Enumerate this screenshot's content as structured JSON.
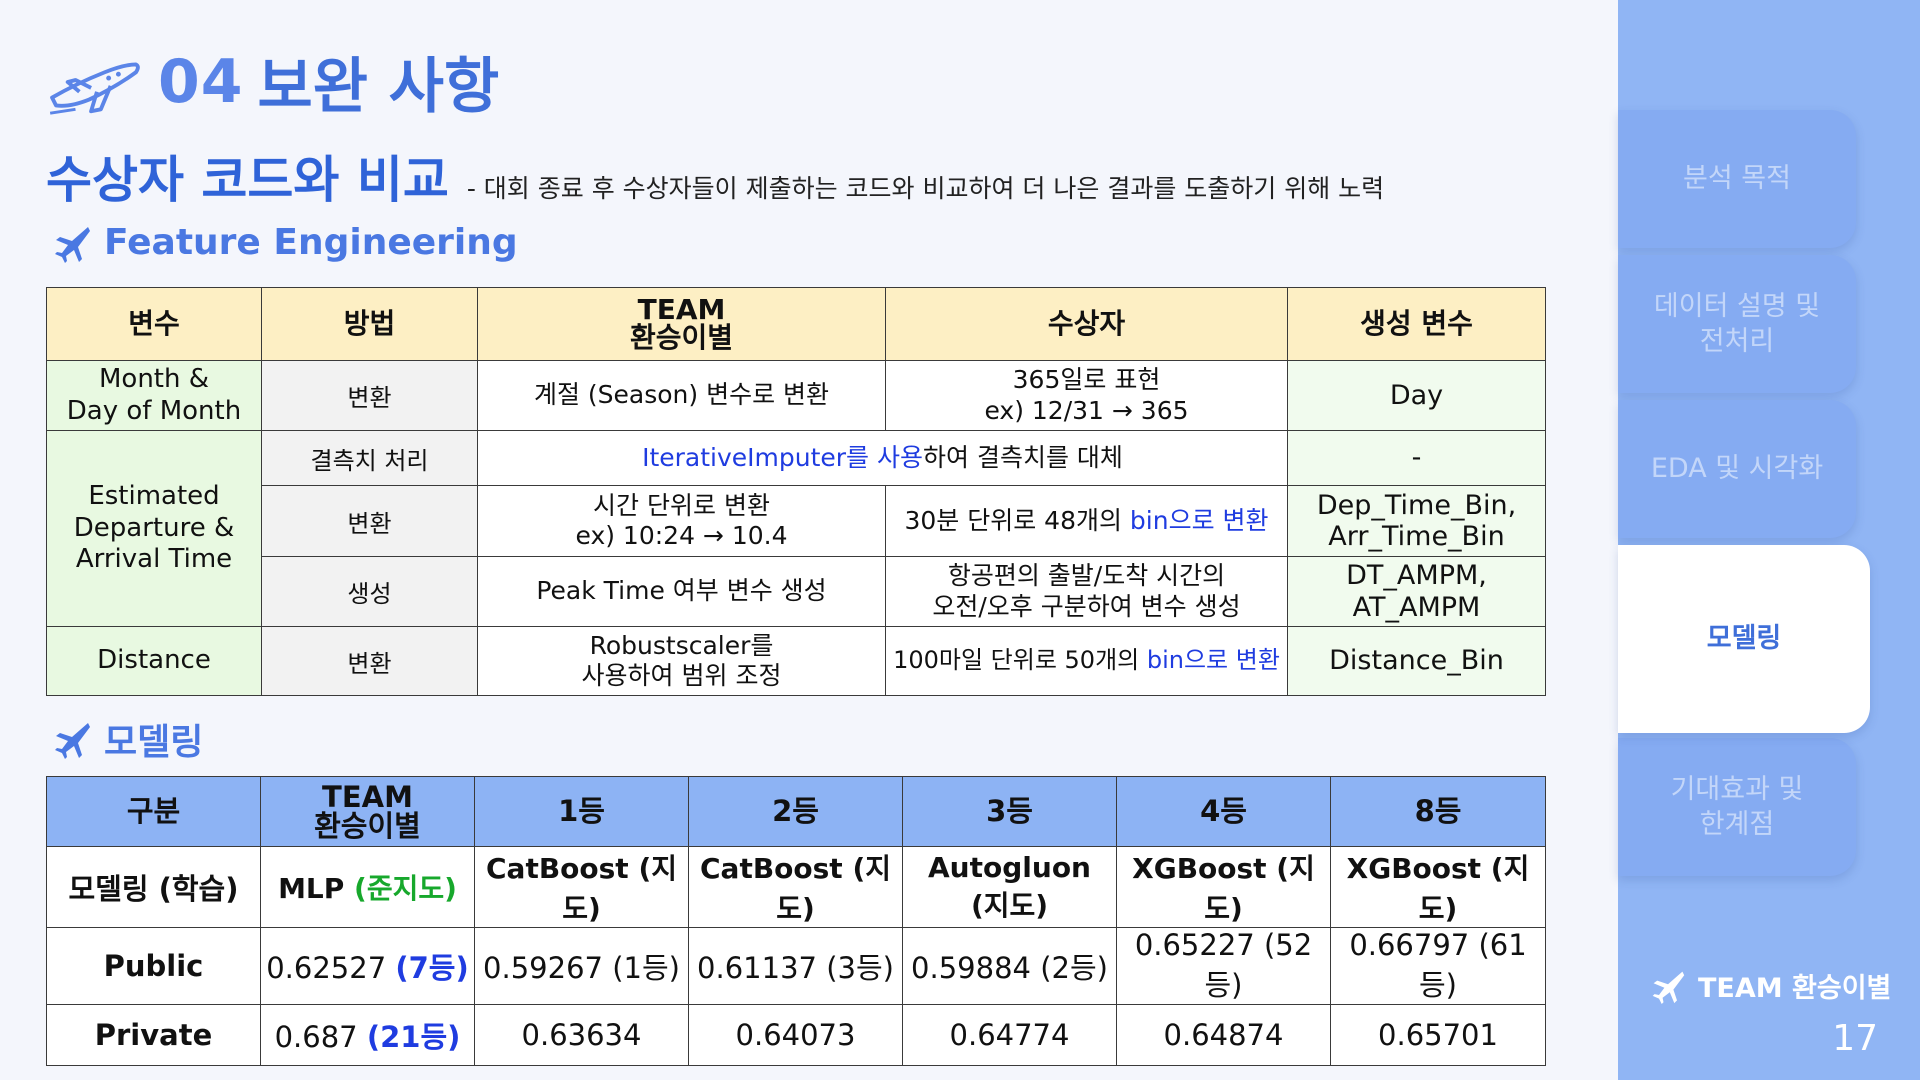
{
  "header": {
    "number": "04",
    "title": "보완 사항"
  },
  "subtitle": "수상자 코드와 비교",
  "description": "- 대회 종료 후 수상자들이 제출하는 코드와 비교하여 더 나은 결과를 도출하기 위해 노력",
  "section_fe": "Feature Engineering",
  "section_model": "모델링",
  "fe_table": {
    "headers": {
      "var": "변수",
      "method": "방법",
      "team_l1": "TEAM",
      "team_l2": "환승이별",
      "winner": "수상자",
      "generated": "생성 변수"
    },
    "r1": {
      "feature_l1": "Month &",
      "feature_l2": "Day of Month",
      "method": "변환",
      "team": "계절 (Season) 변수로 변환",
      "winner_l1": "365일로 표현",
      "winner_l2": "ex) 12/31 → 365",
      "generated": "Day"
    },
    "r2": {
      "feature_l1": "Estimated",
      "feature_l2": "Departure &",
      "feature_l3": "Arrival Time",
      "method": "결측치 처리",
      "merged_blue": "IterativeImputer를 사용",
      "merged_rest": "하여 결측치를 대체",
      "generated": "-"
    },
    "r3": {
      "method": "변환",
      "team_l1": "시간 단위로 변환",
      "team_l2": "ex) 10:24 → 10.4",
      "winner_prefix": "30분 단위로 48개의 ",
      "winner_blue": "bin으로 변환",
      "generated_l1": "Dep_Time_Bin,",
      "generated_l2": "Arr_Time_Bin"
    },
    "r4": {
      "method": "생성",
      "team": "Peak Time 여부 변수 생성",
      "winner_l1": "항공편의 출발/도착 시간의",
      "winner_l2": "오전/오후 구분하여 변수 생성",
      "generated_l1": "DT_AMPM,",
      "generated_l2": "AT_AMPM"
    },
    "r5": {
      "feature": "Distance",
      "method": "변환",
      "team_l1": "Robustscaler를",
      "team_l2": "사용하여 범위 조정",
      "winner_prefix": "100마일 단위로 50개의 ",
      "winner_blue": "bin으로 변환",
      "generated": "Distance_Bin"
    }
  },
  "model_table": {
    "headers": [
      "구분",
      "TEAM",
      "환승이별",
      "1등",
      "2등",
      "3등",
      "4등",
      "8등"
    ],
    "model_row": {
      "label": "모델링 (학습)",
      "team_main": "MLP ",
      "team_note": "(준지도)",
      "others": [
        "CatBoost (지도)",
        "CatBoost (지도)",
        "Autogluon (지도)",
        "XGBoost (지도)",
        "XGBoost (지도)"
      ]
    },
    "public_row": {
      "label": "Public",
      "team_main": "0.62527 ",
      "team_rank": "(7등)",
      "others": [
        "0.59267 (1등)",
        "0.61137 (3등)",
        "0.59884 (2등)",
        "0.65227 (52등)",
        "0.66797 (61등)"
      ]
    },
    "private_row": {
      "label": "Private",
      "team_main": "0.687 ",
      "team_rank": "(21등)",
      "others": [
        "0.63634",
        "0.64073",
        "0.64774",
        "0.64874",
        "0.65701"
      ]
    }
  },
  "sidebar": {
    "tabs": [
      {
        "l1": "분석 목적",
        "l2": ""
      },
      {
        "l1": "데이터 설명 및",
        "l2": "전처리"
      },
      {
        "l1": "EDA 및 시각화",
        "l2": ""
      },
      {
        "l1": "모델링",
        "l2": ""
      },
      {
        "l1": "기대효과 및",
        "l2": "한계점"
      }
    ],
    "active_index": 3,
    "brand": "TEAM 환승이별",
    "page": "17"
  },
  "colors": {
    "accent": "#3f6fd9",
    "fe_header": "#fdefc4",
    "fe_feature": "#e8f9e1",
    "model_header": "#8db3f4",
    "sidebar": "#90b5f4",
    "link_blue": "#1f3ce0",
    "green": "#17a82c"
  },
  "icons": {
    "header": "airplane-icon",
    "section": "airplane-icon"
  }
}
